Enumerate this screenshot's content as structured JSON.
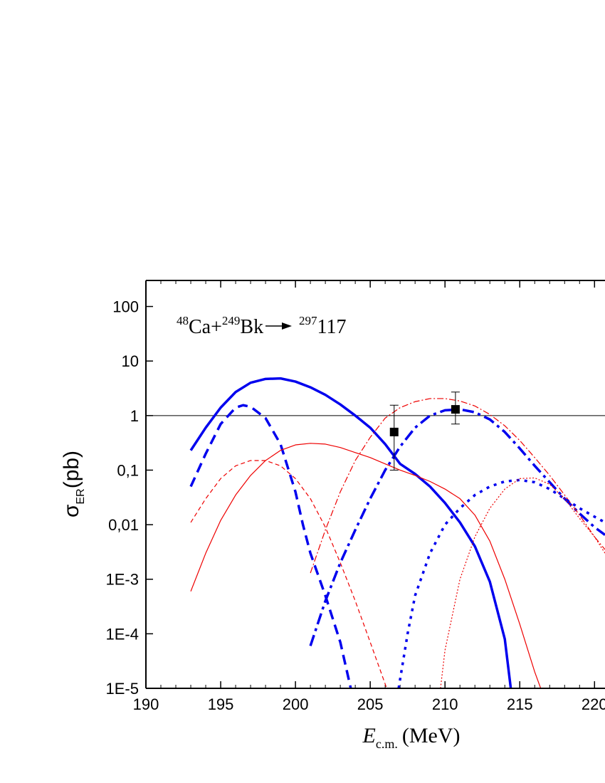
{
  "chart_data": {
    "type": "line",
    "xlim": [
      190,
      220.7
    ],
    "ylim": [
      1e-05,
      300
    ],
    "log_y": true,
    "xticks": [
      190,
      195,
      200,
      205,
      210,
      215,
      220
    ],
    "yticks": [
      {
        "value": 100,
        "label": "100"
      },
      {
        "value": 10,
        "label": "10"
      },
      {
        "value": 1,
        "label": "1"
      },
      {
        "value": 0.1,
        "label": "0,1"
      },
      {
        "value": 0.01,
        "label": "0,01"
      },
      {
        "value": 0.001,
        "label": "1E-3"
      },
      {
        "value": 0.0001,
        "label": "1E-4"
      },
      {
        "value": 1e-05,
        "label": "1E-5"
      }
    ],
    "hline": 1,
    "x_label": {
      "symbol": "E",
      "subscript": "c.m.",
      "unit": "(MeV)"
    },
    "y_label": {
      "symbol": "σ",
      "subscript": "ER",
      "unit": "(pb)"
    },
    "annotation": {
      "a1": "48",
      "t1": "Ca+",
      "a2": "249",
      "t2": "Bk",
      "a3": "297",
      "t3": "117"
    },
    "series": [
      {
        "color": "#0000ee",
        "dash": "solid",
        "width": 3.5,
        "x": [
          193,
          194,
          195,
          196,
          197,
          198,
          199,
          200,
          201,
          202,
          203,
          204,
          205,
          206,
          207,
          208,
          209,
          210,
          211,
          212,
          213,
          214,
          214.4
        ],
        "values": [
          0.23,
          0.6,
          1.4,
          2.7,
          4.0,
          4.7,
          4.8,
          4.2,
          3.3,
          2.4,
          1.6,
          1.0,
          0.6,
          0.3,
          0.13,
          0.085,
          0.05,
          0.025,
          0.011,
          0.004,
          0.0009,
          8e-05,
          1e-05
        ]
      },
      {
        "color": "#0000ee",
        "dash": "dash",
        "width": 3.5,
        "x": [
          193,
          194,
          195,
          196,
          196.5,
          197,
          198,
          199,
          200,
          200.5,
          201,
          202,
          203,
          203.7
        ],
        "values": [
          0.05,
          0.2,
          0.7,
          1.4,
          1.55,
          1.45,
          0.9,
          0.3,
          0.04,
          0.01,
          0.003,
          0.0005,
          7e-05,
          1e-05
        ]
      },
      {
        "color": "#ee0000",
        "dash": "solid",
        "width": 1.2,
        "x": [
          193,
          194,
          195,
          196,
          197,
          198,
          199,
          200,
          201,
          202,
          203,
          204,
          205,
          206,
          207,
          208,
          209,
          210,
          211,
          212,
          213,
          214,
          215,
          216,
          216.4
        ],
        "values": [
          0.0006,
          0.003,
          0.012,
          0.035,
          0.08,
          0.15,
          0.23,
          0.29,
          0.31,
          0.3,
          0.26,
          0.21,
          0.17,
          0.13,
          0.1,
          0.08,
          0.062,
          0.045,
          0.03,
          0.015,
          0.005,
          0.001,
          0.00015,
          2e-05,
          1e-05
        ]
      },
      {
        "color": "#ee0000",
        "dash": "dash",
        "width": 1.2,
        "x": [
          193,
          194,
          195,
          196,
          197,
          198,
          199,
          200,
          201,
          202,
          203,
          204,
          205,
          206,
          206.1
        ],
        "values": [
          0.011,
          0.03,
          0.07,
          0.12,
          0.15,
          0.15,
          0.12,
          0.07,
          0.03,
          0.009,
          0.002,
          0.0004,
          7e-05,
          1.2e-05,
          1e-05
        ]
      },
      {
        "color": "#0000ee",
        "dash": "dashdot",
        "width": 3.5,
        "x": [
          201,
          202,
          203,
          204,
          205,
          206,
          207,
          208,
          209,
          210,
          211,
          212,
          213,
          214,
          215,
          216,
          217,
          218,
          219,
          220,
          220.7
        ],
        "values": [
          6e-05,
          0.0004,
          0.002,
          0.008,
          0.03,
          0.1,
          0.27,
          0.6,
          1.0,
          1.25,
          1.3,
          1.15,
          0.85,
          0.5,
          0.25,
          0.12,
          0.06,
          0.03,
          0.016,
          0.009,
          0.0065
        ]
      },
      {
        "color": "#ee0000",
        "dash": "dashdot",
        "width": 1.2,
        "x": [
          201,
          202,
          203,
          204,
          205,
          206,
          207,
          208,
          209,
          210,
          211,
          212,
          213,
          214,
          215,
          216,
          217,
          218,
          219,
          220,
          220.7
        ],
        "values": [
          0.0013,
          0.008,
          0.04,
          0.15,
          0.4,
          0.9,
          1.4,
          1.8,
          2.05,
          2.05,
          1.85,
          1.5,
          1.05,
          0.65,
          0.35,
          0.17,
          0.08,
          0.035,
          0.015,
          0.006,
          0.0035
        ]
      },
      {
        "color": "#0000ee",
        "dash": "dot",
        "width": 3.5,
        "x": [
          206.9,
          207.5,
          208,
          209,
          210,
          211,
          212,
          213,
          214,
          215,
          216,
          217,
          218,
          219,
          220,
          220.7
        ],
        "values": [
          1e-05,
          0.0001,
          0.0005,
          0.003,
          0.01,
          0.02,
          0.035,
          0.05,
          0.062,
          0.066,
          0.06,
          0.045,
          0.03,
          0.02,
          0.014,
          0.011
        ]
      },
      {
        "color": "#ee0000",
        "dash": "dot",
        "width": 1.2,
        "x": [
          209.7,
          210,
          211,
          212,
          213,
          214,
          215,
          216,
          217,
          218,
          219,
          220,
          220.7
        ],
        "values": [
          1e-05,
          5e-05,
          0.001,
          0.006,
          0.02,
          0.045,
          0.07,
          0.072,
          0.055,
          0.03,
          0.013,
          0.006,
          0.003
        ]
      }
    ],
    "points": {
      "color": "#000000",
      "x": [
        206.6,
        210.7
      ],
      "values": [
        0.5,
        1.3
      ],
      "lower": [
        0.1,
        0.7
      ],
      "upper": [
        1.55,
        2.7
      ]
    }
  }
}
